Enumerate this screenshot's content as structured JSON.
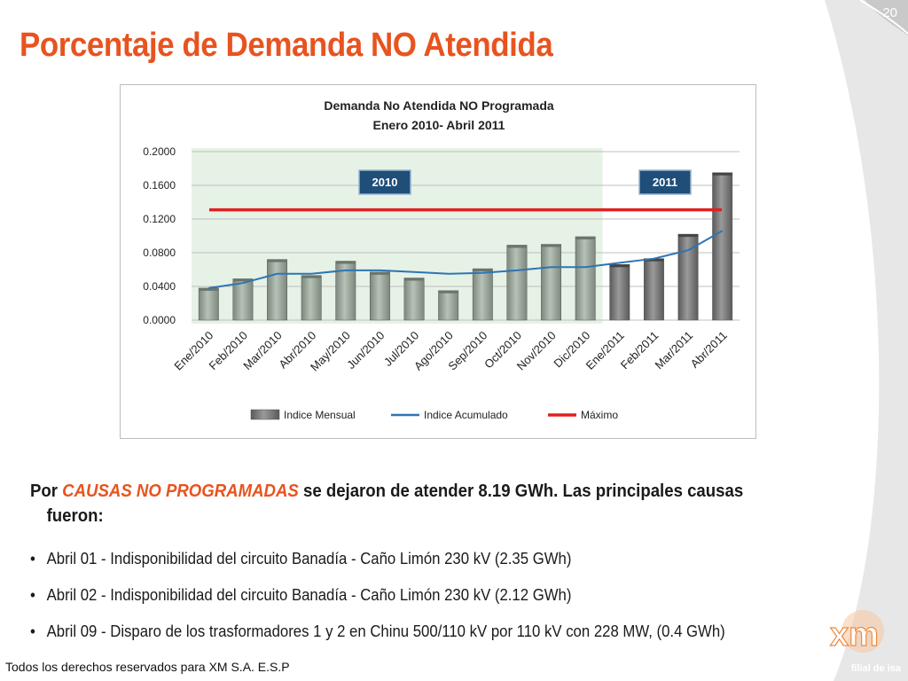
{
  "page_number": "20",
  "slide_title": "Porcentaje de Demanda NO Atendida",
  "colors": {
    "title": "#e8531f",
    "bar_2010": "#8e9a8e",
    "bar_2011": "#6f6f6f",
    "acumulado": "#2e74b5",
    "maximo": "#e02020",
    "shade_2010": "#e6f2e6",
    "label_box": "#1f4e79"
  },
  "chart_data": {
    "type": "bar",
    "title": "Demanda No Atendida NO Programada",
    "subtitle": "Enero 2010- Abril 2011",
    "categories": [
      "Ene/2010",
      "Feb/2010",
      "Mar/2010",
      "Abr/2010",
      "May/2010",
      "Jun/2010",
      "Jul/2010",
      "Ago/2010",
      "Sep/2010",
      "Oct/2010",
      "Nov/2010",
      "Dic/2010",
      "Ene/2011",
      "Feb/2011",
      "Mar/2011",
      "Abr/2011"
    ],
    "ylim": [
      0,
      0.2
    ],
    "yticks": [
      "0.0000",
      "0.0400",
      "0.0800",
      "0.1200",
      "0.1600",
      "0.2000"
    ],
    "series": [
      {
        "name": "Indice Mensual",
        "kind": "bar",
        "values": [
          0.038,
          0.049,
          0.072,
          0.053,
          0.07,
          0.057,
          0.05,
          0.035,
          0.061,
          0.089,
          0.09,
          0.099,
          0.066,
          0.073,
          0.102,
          0.175
        ]
      },
      {
        "name": "Indice Acumulado",
        "kind": "line",
        "values": [
          0.038,
          0.044,
          0.055,
          0.055,
          0.059,
          0.059,
          0.057,
          0.055,
          0.056,
          0.059,
          0.063,
          0.063,
          0.068,
          0.073,
          0.083,
          0.106
        ]
      },
      {
        "name": "Máximo",
        "kind": "line",
        "values": [
          0.131,
          0.131,
          0.131,
          0.131,
          0.131,
          0.131,
          0.131,
          0.131,
          0.131,
          0.131,
          0.131,
          0.131,
          0.131,
          0.131,
          0.131,
          0.131
        ]
      }
    ],
    "year_labels": [
      "2010",
      "2011"
    ],
    "legend_position": "bottom",
    "grid": true
  },
  "body": {
    "lead_prefix": "Por ",
    "lead_highlight": "CAUSAS NO PROGRAMADAS",
    "lead_line1_rest": " se dejaron de atender 8.19 GWh. Las principales causas",
    "lead_line2": "fueron:",
    "bullets": [
      "Abril 01 - Indisponibilidad del circuito Banadía - Caño Limón 230 kV (2.35 GWh)",
      "Abril 02 - Indisponibilidad del circuito Banadía - Caño Limón 230 kV (2.12 GWh)",
      "Abril 09 - Disparo de los trasformadores 1 y 2 en Chinu 500/110 kV por 110 kV con 228 MW, (0.4 GWh)"
    ],
    "bullet_symbol": "•"
  },
  "footer": "Todos los derechos reservados para XM S.A. E.S.P",
  "logo": {
    "brand": "xm",
    "tagline": "filial de isa"
  }
}
